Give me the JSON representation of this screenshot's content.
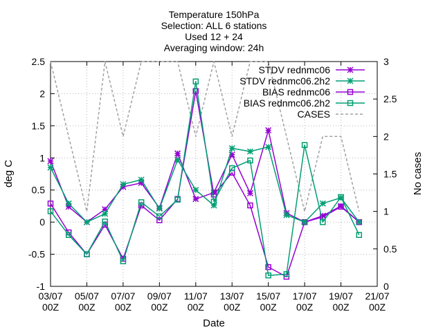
{
  "chart_data": {
    "type": "line",
    "title_lines": [
      "Temperature 150hPa",
      "Selection: ALL      6 stations",
      "Used 12 + 24",
      "Averaging window: 24h"
    ],
    "xlabel": "Date",
    "ylabel": "deg C",
    "y2label": "No cases",
    "ylim": [
      -1,
      2.5
    ],
    "y2lim": [
      0,
      3
    ],
    "xlim": [
      0,
      18
    ],
    "yticks": [
      "-1",
      "-0.5",
      "0",
      "0.5",
      "1",
      "1.5",
      "2",
      "2.5"
    ],
    "y2ticks": [
      "0",
      "0.5",
      "1",
      "1.5",
      "2",
      "2.5",
      "3"
    ],
    "xticks": [
      {
        "x": 0,
        "date": "03/07",
        "hour": "00Z"
      },
      {
        "x": 2,
        "date": "05/07",
        "hour": "00Z"
      },
      {
        "x": 4,
        "date": "07/07",
        "hour": "00Z"
      },
      {
        "x": 6,
        "date": "09/07",
        "hour": "00Z"
      },
      {
        "x": 8,
        "date": "11/07",
        "hour": "00Z"
      },
      {
        "x": 10,
        "date": "13/07",
        "hour": "00Z"
      },
      {
        "x": 12,
        "date": "15/07",
        "hour": "00Z"
      },
      {
        "x": 14,
        "date": "17/07",
        "hour": "00Z"
      },
      {
        "x": 16,
        "date": "19/07",
        "hour": "00Z"
      },
      {
        "x": 18,
        "date": "21/07",
        "hour": "00Z"
      }
    ],
    "x": [
      0,
      1,
      2,
      3,
      4,
      5,
      6,
      7,
      8,
      9,
      10,
      11,
      12,
      13,
      14,
      15,
      16,
      17
    ],
    "series": [
      {
        "name": "STDV rednmc06",
        "color": "#9400d3",
        "marker": "star",
        "axis": "y",
        "values": [
          0.95,
          0.24,
          0.0,
          0.2,
          0.55,
          0.61,
          0.22,
          1.07,
          0.36,
          0.46,
          1.05,
          0.45,
          1.43,
          0.14,
          0.0,
          0.1,
          0.25,
          0.0
        ]
      },
      {
        "name": "STDV rednmc06.2h2",
        "color": "#009e73",
        "marker": "star",
        "axis": "y",
        "values": [
          0.85,
          0.29,
          0.0,
          0.13,
          0.59,
          0.66,
          0.21,
          0.97,
          0.5,
          0.26,
          1.15,
          1.1,
          1.17,
          0.11,
          0.0,
          0.29,
          0.38,
          0.0
        ]
      },
      {
        "name": "BIAS rednmc06",
        "color": "#9400d3",
        "marker": "square",
        "axis": "y",
        "values": [
          0.29,
          -0.16,
          -0.5,
          -0.04,
          -0.57,
          0.26,
          0.03,
          0.36,
          2.04,
          0.43,
          0.77,
          0.26,
          -0.7,
          -0.85,
          0.0,
          0.08,
          0.24,
          0.0
        ]
      },
      {
        "name": "BIAS rednmc06.2h2",
        "color": "#009e73",
        "marker": "square",
        "axis": "y",
        "values": [
          0.17,
          -0.2,
          -0.5,
          0.01,
          -0.61,
          0.31,
          0.09,
          0.35,
          2.19,
          0.32,
          0.84,
          0.96,
          -0.83,
          -0.81,
          1.2,
          0.0,
          0.39,
          -0.2
        ]
      },
      {
        "name": "CASES",
        "color": "#a0a0a0",
        "marker": "none",
        "dash": true,
        "axis": "y2",
        "values": [
          3.0,
          2.0,
          1.0,
          3.0,
          2.0,
          3.0,
          3.0,
          3.0,
          2.0,
          3.0,
          2.0,
          3.0,
          3.0,
          2.0,
          1.0,
          2.0,
          2.0,
          1.0
        ]
      }
    ]
  }
}
